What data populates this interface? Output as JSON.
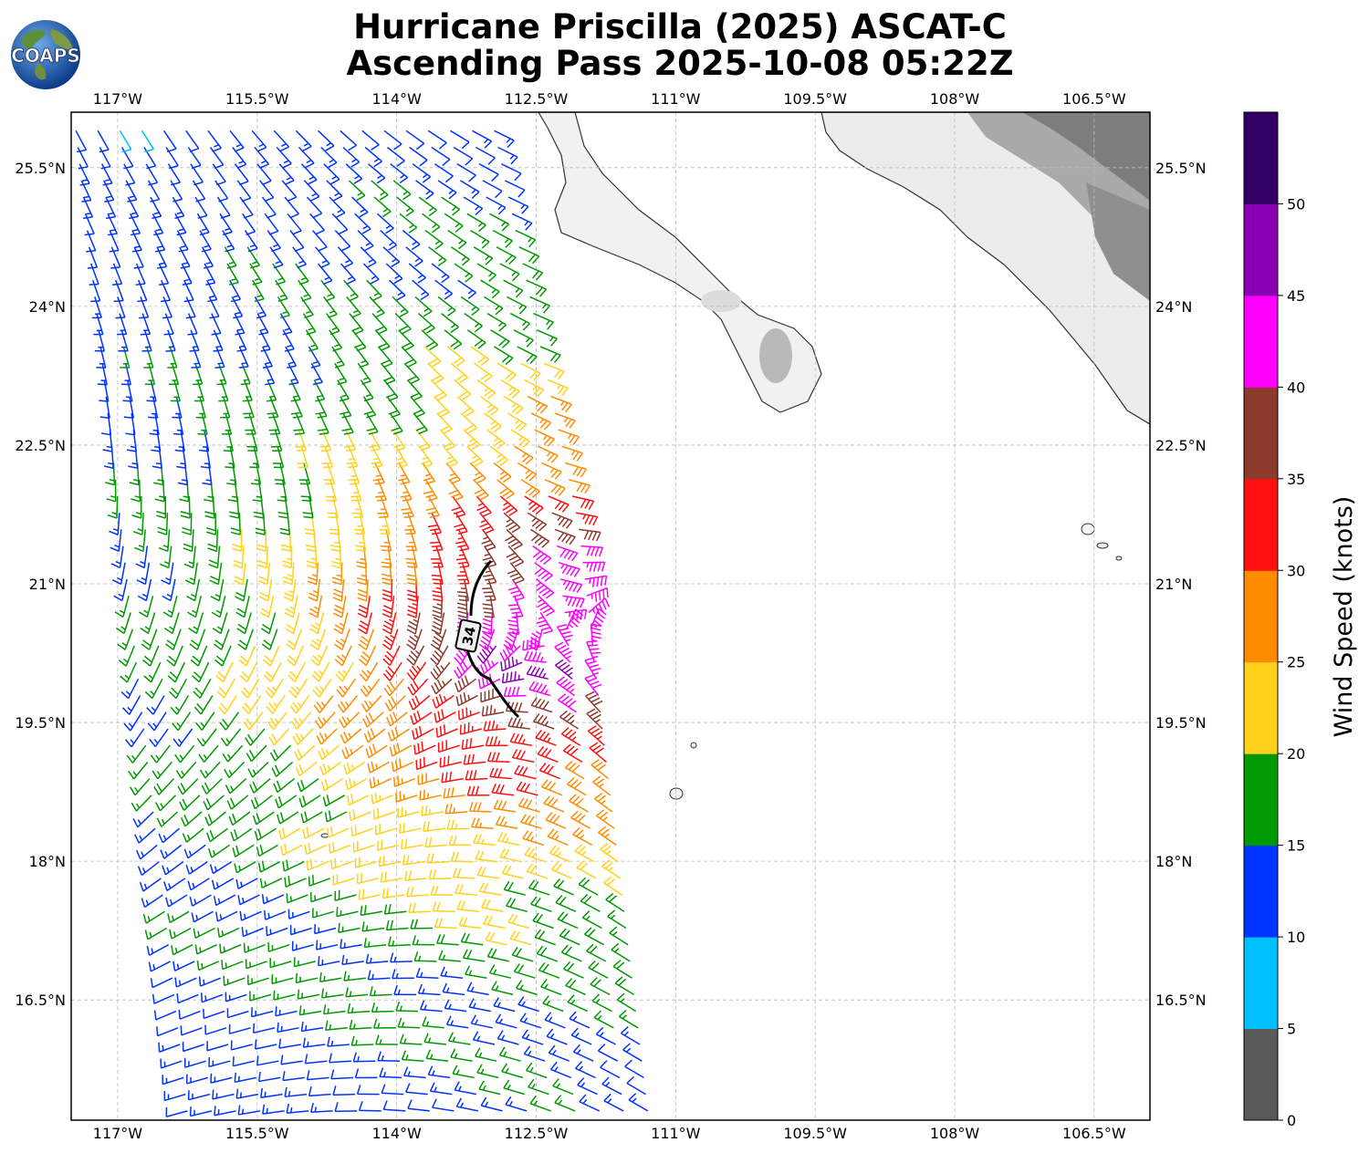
{
  "title": {
    "line1": "Hurricane Priscilla (2025) ASCAT-C",
    "line2": "Ascending Pass 2025-10-08 05:22Z"
  },
  "logo": {
    "text": "COAPS",
    "icon": "globe-logo-icon"
  },
  "map": {
    "lon_range": [
      -117.5,
      -105.9
    ],
    "lat_range": [
      15.2,
      26.1
    ],
    "lon_ticks": [
      -117,
      -115.5,
      -114,
      -112.5,
      -111,
      -109.5,
      -108,
      -106.5
    ],
    "lon_tick_labels": [
      "117°W",
      "115.5°W",
      "114°W",
      "112.5°W",
      "111°W",
      "109.5°W",
      "108°W",
      "106.5°W"
    ],
    "lat_ticks": [
      25.5,
      24,
      22.5,
      21,
      19.5,
      18,
      16.5
    ],
    "lat_tick_labels": [
      "25.5°N",
      "24°N",
      "22.5°N",
      "21°N",
      "19.5°N",
      "18°N",
      "16.5°N"
    ],
    "grid": true,
    "contour_label": "34"
  },
  "colorbar": {
    "label": "Wind Speed (knots)",
    "ticks": [
      "0",
      "5",
      "10",
      "15",
      "20",
      "25",
      "30",
      "35",
      "40",
      "45",
      "50"
    ],
    "colors": [
      "#595959",
      "#00bfff",
      "#0033ff",
      "#009900",
      "#ffd11a",
      "#ff8c00",
      "#ff1010",
      "#8b3a2b",
      "#ff00ff",
      "#8c00b3",
      "#330066"
    ]
  }
}
